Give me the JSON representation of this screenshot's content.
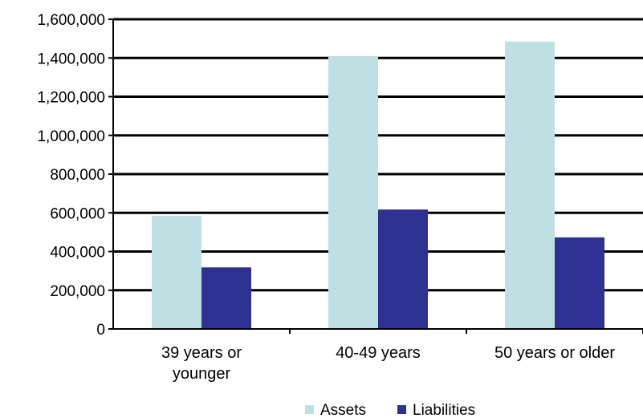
{
  "chart_data": {
    "type": "bar",
    "categories": [
      [
        "39 years or",
        "younger"
      ],
      [
        "40-49 years"
      ],
      [
        "50 years or older"
      ]
    ],
    "series": [
      {
        "name": "Assets",
        "values": [
          585000,
          1410000,
          1485000
        ],
        "color": "#bfe0e2"
      },
      {
        "name": "Liabilities",
        "values": [
          318000,
          617000,
          473000
        ],
        "color": "#2e3192"
      }
    ],
    "yticks": [
      "0",
      "200,000",
      "400,000",
      "600,000",
      "800,000",
      "1,000,000",
      "1,200,000",
      "1,400,000",
      "1,600,000"
    ],
    "ylim": [
      0,
      1600000
    ],
    "grid": true,
    "legend_position": "bottom"
  }
}
